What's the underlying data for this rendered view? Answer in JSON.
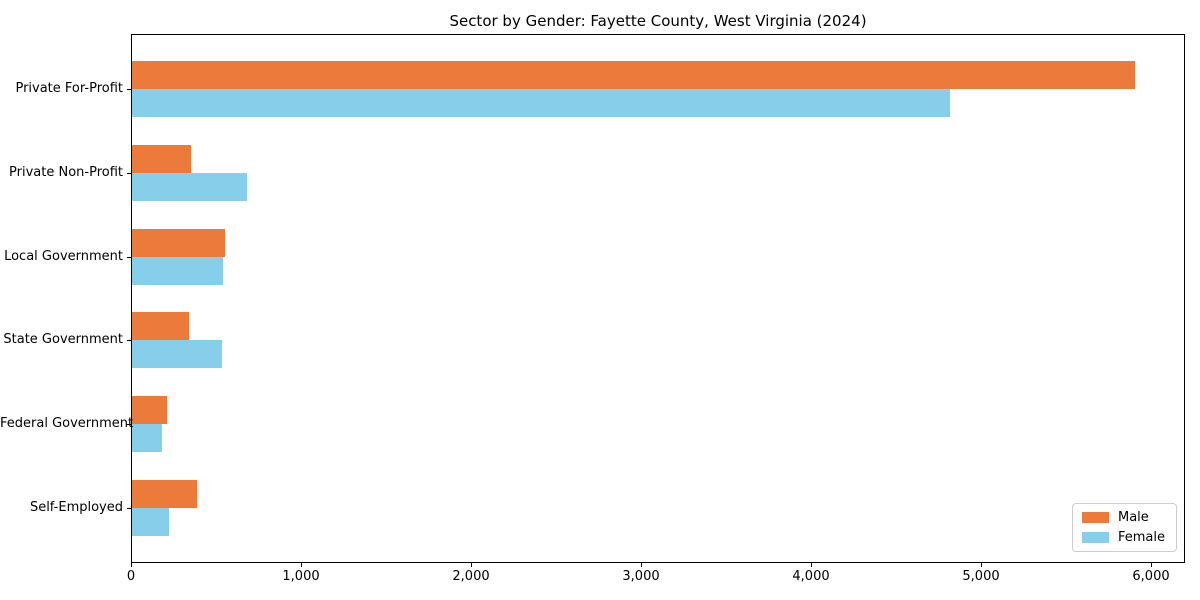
{
  "chart_data": {
    "type": "bar",
    "orientation": "horizontal",
    "title": "Sector by Gender: Fayette County, West Virginia (2024)",
    "xlabel": "",
    "ylabel": "",
    "categories": [
      "Private For-Profit",
      "Private Non-Profit",
      "Local Government",
      "State Government",
      "Federal Government",
      "Self-Employed"
    ],
    "series": [
      {
        "name": "Male",
        "color": "#EB7A3B",
        "values": [
          5900,
          345,
          545,
          335,
          205,
          385
        ]
      },
      {
        "name": "Female",
        "color": "#87CEEB",
        "values": [
          4810,
          675,
          535,
          530,
          175,
          215
        ]
      }
    ],
    "xlim": [
      0,
      6200
    ],
    "xticks": [
      0,
      1000,
      2000,
      3000,
      4000,
      5000,
      6000
    ],
    "xtick_labels": [
      "0",
      "1,000",
      "2,000",
      "3,000",
      "4,000",
      "5,000",
      "6,000"
    ],
    "grid": false,
    "legend_position": "lower right",
    "axis_color": "#000000",
    "background_color": "#ffffff"
  }
}
